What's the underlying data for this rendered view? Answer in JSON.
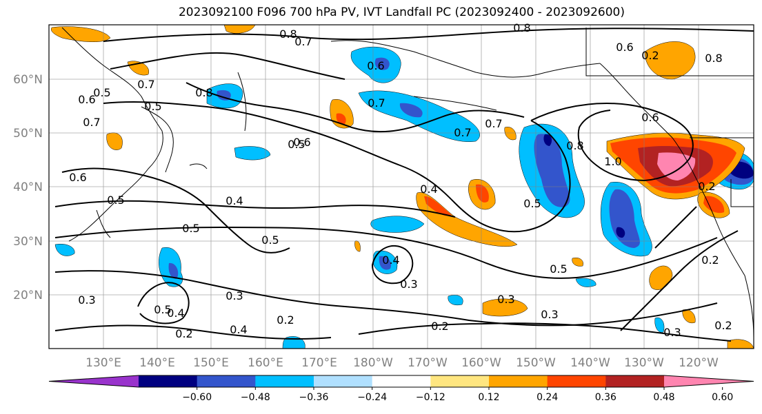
{
  "title": "2023092100 F096 700 hPa PV, IVT Landfall PC (2023092400 - 2023092600)",
  "lat_labels": [
    "60°N",
    "50°N",
    "40°N",
    "30°N",
    "20°N"
  ],
  "lon_labels": [
    "130°E",
    "140°E",
    "150°E",
    "160°E",
    "170°E",
    "180°W",
    "170°W",
    "160°W",
    "150°W",
    "140°W",
    "130°W",
    "120°W"
  ],
  "colorbar": {
    "labels": [
      "−0.60",
      "−0.48",
      "−0.36",
      "−0.24",
      "−0.12",
      "0.12",
      "0.24",
      "0.36",
      "0.48",
      "0.60"
    ],
    "colors": [
      "#9933cc",
      "#000080",
      "#3355cc",
      "#00bfff",
      "#b0e0ff",
      "#ffffff",
      "#ffe680",
      "#ffa500",
      "#ff4500",
      "#b22222",
      "#ff85b0"
    ]
  },
  "contour_labels": [
    "0.8",
    "0.7",
    "0.8",
    "0.6",
    "0.8",
    "0.5",
    "0.6",
    "0.7",
    "0.5",
    "0.8",
    "0.7",
    "0.6",
    "0.7",
    "0.7",
    "0.6",
    "0.7",
    "0.8",
    "1.0",
    "0.6",
    "0.6",
    "0.5",
    "0.4",
    "0.5",
    "0.4",
    "0.5",
    "0.4",
    "0.5",
    "0.3",
    "0.4",
    "0.3",
    "0.3",
    "0.5",
    "0.4",
    "0.2",
    "0.2",
    "0.2",
    "0.2",
    "0.3",
    "0.3",
    "0.2",
    "0.3",
    "0.2",
    "0.2",
    "0.5",
    "0.5"
  ]
}
